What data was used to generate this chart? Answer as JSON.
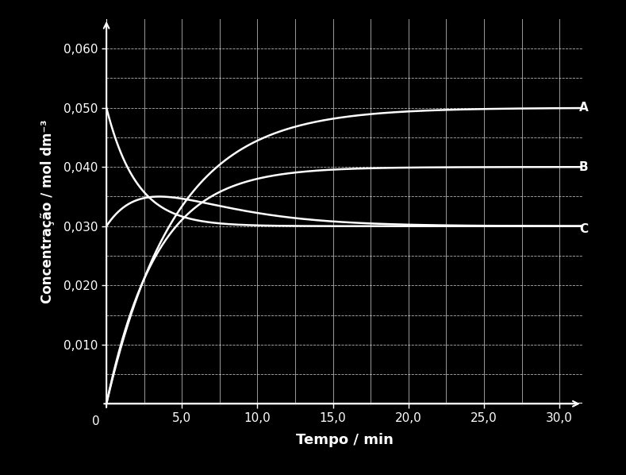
{
  "background_color": "#000000",
  "axes_color": "#ffffff",
  "grid_color": "#ffffff",
  "curve_color": "#ffffff",
  "xlabel": "Tempo / min",
  "ylabel": "Concentração / mol dm⁻³",
  "xlim": [
    0,
    31.5
  ],
  "ylim": [
    0,
    0.065
  ],
  "xticks": [
    5.0,
    10.0,
    15.0,
    20.0,
    25.0,
    30.0
  ],
  "yticks": [
    0.01,
    0.02,
    0.03,
    0.04,
    0.05,
    0.06
  ],
  "xtick_labels": [
    "5,0",
    "10,0",
    "15,0",
    "20,0",
    "25,0",
    "30,0"
  ],
  "ytick_labels": [
    "0,010",
    "0,020",
    "0,030",
    "0,040",
    "0,050",
    "0,060"
  ],
  "curve_A_asymptote": 0.05,
  "curve_A_rate": 0.22,
  "curve_B_asymptote": 0.04,
  "curve_B_rate": 0.3,
  "curve_dec_start": 0.05,
  "curve_dec_asymptote": 0.03,
  "curve_dec_rate": 0.5,
  "curve_low_start": 0.03,
  "curve_low_peak": 0.035,
  "curve_low_peak_t": 3.5,
  "curve_low_asymptote": 0.03,
  "curve_low_rate": 0.45
}
